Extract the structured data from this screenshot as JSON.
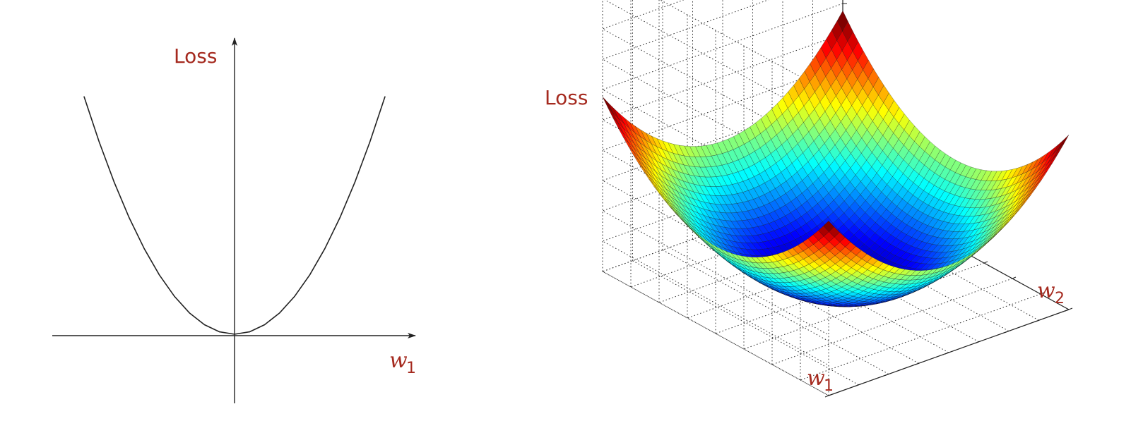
{
  "chart_data": [
    {
      "type": "line",
      "title": "",
      "function": "quadratic",
      "vertex": [
        0,
        0
      ],
      "x": [
        -1.0,
        -0.9,
        -0.8,
        -0.7,
        -0.6,
        -0.5,
        -0.4,
        -0.3,
        -0.2,
        -0.1,
        0.0,
        0.1,
        0.2,
        0.3,
        0.4,
        0.5,
        0.6,
        0.7,
        0.8,
        0.9,
        1.0
      ],
      "y": [
        1.0,
        0.81,
        0.64,
        0.49,
        0.36,
        0.25,
        0.16,
        0.09,
        0.04,
        0.01,
        0.0,
        0.01,
        0.04,
        0.09,
        0.16,
        0.25,
        0.36,
        0.49,
        0.64,
        0.81,
        1.0
      ],
      "xlabel": "w",
      "xlabel_sub": "1",
      "ylabel": "Loss",
      "grid": false,
      "axes_through_origin": true,
      "colors": {
        "curve": "#222222",
        "axes": "#222222",
        "labels": "#a52a1f"
      }
    },
    {
      "type": "surface",
      "title": "",
      "function": "paraboloid",
      "vertex": [
        0,
        0,
        0
      ],
      "x_range": [
        -1,
        1
      ],
      "y_range": [
        -1,
        1
      ],
      "xlabel": "w",
      "xlabel_sub": "1",
      "ylabel": "w",
      "ylabel_sub": "2",
      "zlabel": "Loss",
      "grid": true,
      "colormap": "jet",
      "colors": {
        "labels": "#a52a1f",
        "grid": "#333333",
        "mesh": "#000000"
      }
    }
  ]
}
